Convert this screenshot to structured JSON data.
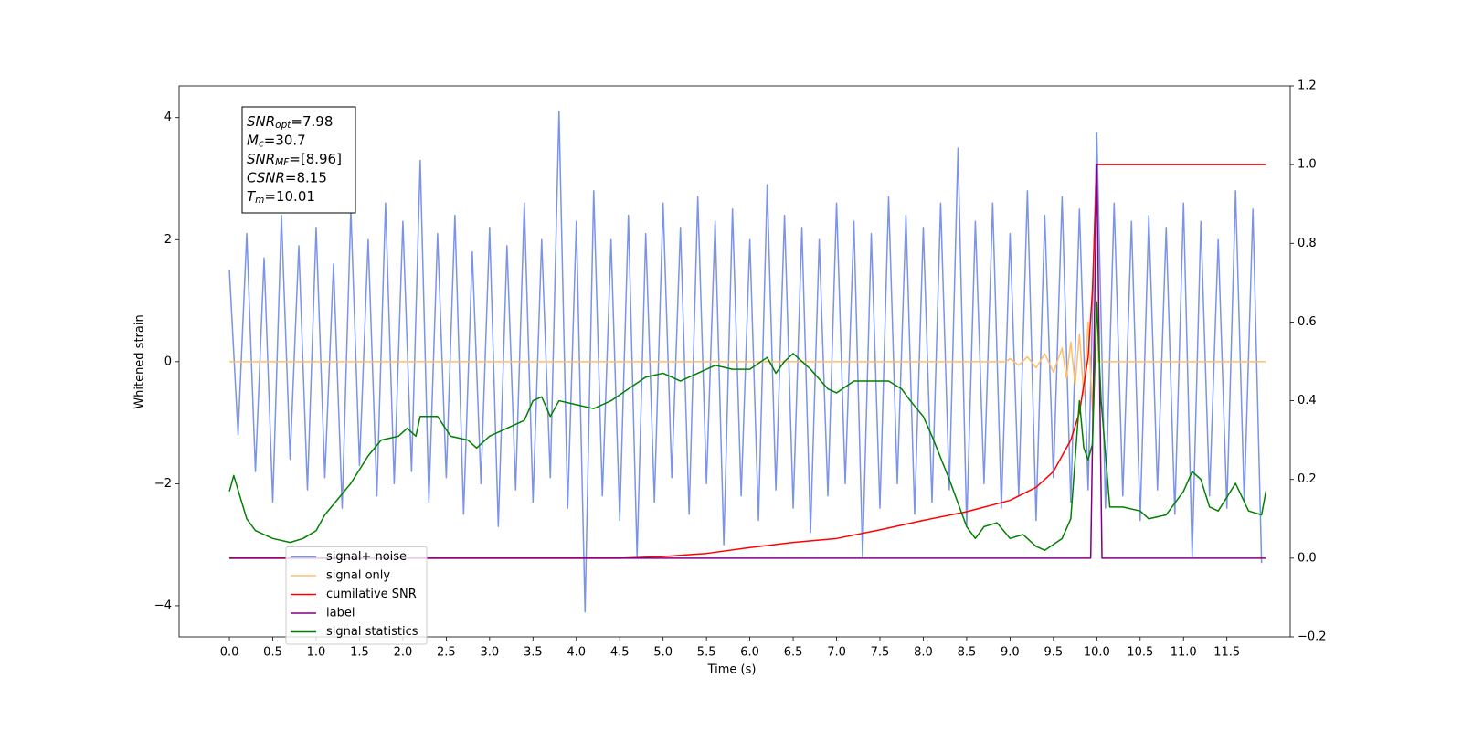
{
  "chart_data": {
    "type": "line",
    "xlabel": "Time (s)",
    "ylabel": "Whitened strain",
    "xlim": [
      -0.58,
      12.23
    ],
    "ylim": [
      -4.51,
      4.52
    ],
    "y2lim": [
      -0.2,
      1.2
    ],
    "xticks": [
      {
        "value": 0,
        "label": "0.0"
      },
      0.5,
      {
        "value": 1,
        "label": "1.0"
      },
      1.5,
      {
        "value": 2,
        "label": "2.0"
      },
      2.5,
      {
        "value": 3,
        "label": "3.0"
      },
      3.5,
      {
        "value": 4,
        "label": "4.0"
      },
      4.5,
      {
        "value": 5,
        "label": "5.0"
      },
      5.5,
      {
        "value": 6,
        "label": "6.0"
      },
      6.5,
      {
        "value": 7,
        "label": "7.0"
      },
      7.5,
      {
        "value": 8,
        "label": "8.0"
      },
      8.5,
      {
        "value": 9,
        "label": "9.0"
      },
      9.5,
      {
        "value": 10,
        "label": "10.0"
      },
      10.5,
      {
        "value": 11,
        "label": "11.0"
      },
      11.5
    ],
    "yticks": [
      {
        "value": -4,
        "label": "−4"
      },
      {
        "value": -2,
        "label": "−2"
      },
      0,
      2,
      4
    ],
    "y2ticks": [
      {
        "value": -0.2,
        "label": "−0.2"
      },
      {
        "value": 0,
        "label": "0.0"
      },
      0.2,
      0.4,
      0.6,
      0.8,
      {
        "value": 1,
        "label": "1.0"
      },
      1.2
    ],
    "legend_loc": "lower left",
    "annotations": [
      {
        "name": "SNR",
        "sub": "opt",
        "value": "=7.98"
      },
      {
        "name": "M",
        "sub": "c",
        "value": "=30.7"
      },
      {
        "name": "SNR",
        "sub": "MF",
        "value": "=[8.96]"
      },
      {
        "name": "CSNR",
        "sub": "",
        "value": "=8.15"
      },
      {
        "name": "T",
        "sub": "m",
        "value": "=10.01"
      }
    ],
    "series": [
      {
        "name": "signal+ noise",
        "color": "#7b93e8",
        "axis": "y",
        "x": [
          0,
          0.1,
          0.2,
          0.3,
          0.4,
          0.5,
          0.6,
          0.7,
          0.8,
          0.9,
          1,
          1.1,
          1.2,
          1.3,
          1.4,
          1.5,
          1.6,
          1.7,
          1.8,
          1.9,
          2,
          2.1,
          2.2,
          2.3,
          2.4,
          2.5,
          2.6,
          2.7,
          2.8,
          2.9,
          3,
          3.1,
          3.2,
          3.3,
          3.4,
          3.5,
          3.6,
          3.7,
          3.8,
          3.9,
          4,
          4.1,
          4.2,
          4.3,
          4.4,
          4.5,
          4.6,
          4.7,
          4.8,
          4.9,
          5,
          5.1,
          5.2,
          5.3,
          5.4,
          5.5,
          5.6,
          5.7,
          5.8,
          5.9,
          6,
          6.1,
          6.2,
          6.3,
          6.4,
          6.5,
          6.6,
          6.7,
          6.8,
          6.9,
          7,
          7.1,
          7.2,
          7.3,
          7.4,
          7.5,
          7.6,
          7.7,
          7.8,
          7.9,
          8,
          8.1,
          8.2,
          8.3,
          8.4,
          8.5,
          8.6,
          8.7,
          8.8,
          8.9,
          9,
          9.1,
          9.2,
          9.3,
          9.4,
          9.5,
          9.6,
          9.7,
          9.8,
          9.9,
          10,
          10.1,
          10.2,
          10.3,
          10.4,
          10.5,
          10.6,
          10.7,
          10.8,
          10.9,
          11,
          11.1,
          11.2,
          11.3,
          11.4,
          11.5,
          11.6,
          11.7,
          11.8,
          11.9
        ],
        "values": [
          1.5,
          -1.2,
          2.1,
          -1.8,
          1.7,
          -2.3,
          2.4,
          -1.6,
          1.9,
          -2.1,
          2.2,
          -1.9,
          1.6,
          -2.4,
          2.5,
          -1.7,
          2.0,
          -2.2,
          2.6,
          -2.0,
          2.3,
          -1.8,
          3.3,
          -2.3,
          2.1,
          -1.9,
          2.4,
          -2.5,
          1.8,
          -2.0,
          2.2,
          -2.7,
          1.9,
          -2.1,
          2.6,
          -2.3,
          2.0,
          -1.9,
          4.1,
          -2.4,
          2.3,
          -4.1,
          2.8,
          -2.2,
          2.0,
          -2.6,
          2.4,
          -3.2,
          2.1,
          -2.3,
          2.6,
          -1.9,
          2.2,
          -2.5,
          2.7,
          -2.0,
          2.3,
          -3.0,
          2.5,
          -2.2,
          2.0,
          -2.6,
          2.9,
          -2.1,
          2.4,
          -2.4,
          2.2,
          -2.8,
          2.0,
          -2.2,
          2.6,
          -2.0,
          2.3,
          -3.2,
          2.1,
          -2.4,
          2.7,
          -2.0,
          2.4,
          -2.5,
          2.2,
          -2.3,
          2.6,
          -2.1,
          3.5,
          -2.7,
          2.3,
          -2.0,
          2.6,
          -2.4,
          2.1,
          -2.2,
          2.8,
          -2.6,
          2.4,
          -1.9,
          2.7,
          -2.3,
          2.5,
          -2.1,
          3.75,
          -2.4,
          2.6,
          -2.2,
          2.3,
          -2.6,
          2.4,
          -2.1,
          2.2,
          -2.5,
          2.6,
          -3.2,
          2.3,
          -2.2,
          2.0,
          -2.4,
          2.8,
          -2.3,
          2.5,
          -3.3
        ]
      },
      {
        "name": "signal only",
        "color": "#ffbf66",
        "axis": "y",
        "x": [
          0,
          8.95,
          9.0,
          9.1,
          9.2,
          9.3,
          9.4,
          9.5,
          9.6,
          9.65,
          9.7,
          9.75,
          9.8,
          9.85,
          9.9,
          9.95,
          10.0,
          10.02,
          11.95
        ],
        "values": [
          0,
          0,
          0.05,
          -0.06,
          0.08,
          -0.1,
          0.13,
          -0.17,
          0.22,
          -0.27,
          0.32,
          -0.38,
          0.45,
          -0.55,
          0.65,
          -0.8,
          1.0,
          0,
          0
        ]
      },
      {
        "name": "cumilative SNR",
        "color": "red",
        "axis": "y2",
        "x": [
          0,
          4.5,
          5.0,
          5.5,
          6.0,
          6.5,
          7.0,
          7.5,
          8.0,
          8.5,
          9.0,
          9.3,
          9.5,
          9.7,
          9.8,
          9.9,
          9.95,
          10.0,
          11.95
        ],
        "values": [
          0,
          0,
          0.004,
          0.012,
          0.027,
          0.04,
          0.05,
          0.072,
          0.096,
          0.118,
          0.147,
          0.18,
          0.22,
          0.3,
          0.37,
          0.51,
          0.68,
          1.0,
          1.0
        ]
      },
      {
        "name": "label",
        "color": "purple",
        "axis": "y2",
        "x": [
          0,
          9.93,
          10.0,
          10.06,
          11.95
        ],
        "values": [
          0,
          0,
          1,
          0,
          0
        ]
      },
      {
        "name": "signal statistics",
        "color": "green",
        "axis": "y2",
        "x": [
          0,
          0.05,
          0.2,
          0.3,
          0.5,
          0.7,
          0.85,
          1.0,
          1.1,
          1.25,
          1.4,
          1.6,
          1.75,
          1.95,
          2.05,
          2.15,
          2.2,
          2.4,
          2.55,
          2.75,
          2.85,
          3.0,
          3.2,
          3.4,
          3.5,
          3.6,
          3.7,
          3.8,
          4.0,
          4.2,
          4.4,
          4.6,
          4.8,
          5.0,
          5.2,
          5.4,
          5.6,
          5.8,
          6.0,
          6.2,
          6.3,
          6.4,
          6.5,
          6.6,
          6.7,
          6.9,
          7.0,
          7.2,
          7.4,
          7.6,
          7.75,
          7.85,
          8.0,
          8.1,
          8.3,
          8.5,
          8.6,
          8.7,
          8.85,
          9.0,
          9.15,
          9.3,
          9.4,
          9.6,
          9.7,
          9.8,
          9.85,
          9.9,
          9.95,
          10.0,
          10.05,
          10.15,
          10.3,
          10.5,
          10.6,
          10.8,
          11.0,
          11.1,
          11.2,
          11.3,
          11.4,
          11.6,
          11.75,
          11.9,
          11.95
        ],
        "values": [
          0.17,
          0.21,
          0.1,
          0.07,
          0.05,
          0.04,
          0.05,
          0.07,
          0.11,
          0.15,
          0.19,
          0.26,
          0.3,
          0.31,
          0.33,
          0.31,
          0.36,
          0.36,
          0.31,
          0.3,
          0.28,
          0.31,
          0.33,
          0.35,
          0.4,
          0.41,
          0.36,
          0.4,
          0.39,
          0.38,
          0.4,
          0.43,
          0.46,
          0.47,
          0.45,
          0.47,
          0.49,
          0.48,
          0.48,
          0.51,
          0.47,
          0.5,
          0.52,
          0.5,
          0.48,
          0.43,
          0.42,
          0.45,
          0.45,
          0.45,
          0.43,
          0.4,
          0.36,
          0.31,
          0.2,
          0.08,
          0.05,
          0.08,
          0.09,
          0.05,
          0.06,
          0.03,
          0.02,
          0.05,
          0.1,
          0.4,
          0.28,
          0.25,
          0.29,
          0.65,
          0.4,
          0.13,
          0.13,
          0.12,
          0.1,
          0.11,
          0.17,
          0.22,
          0.2,
          0.13,
          0.12,
          0.19,
          0.12,
          0.11,
          0.17
        ]
      }
    ]
  }
}
